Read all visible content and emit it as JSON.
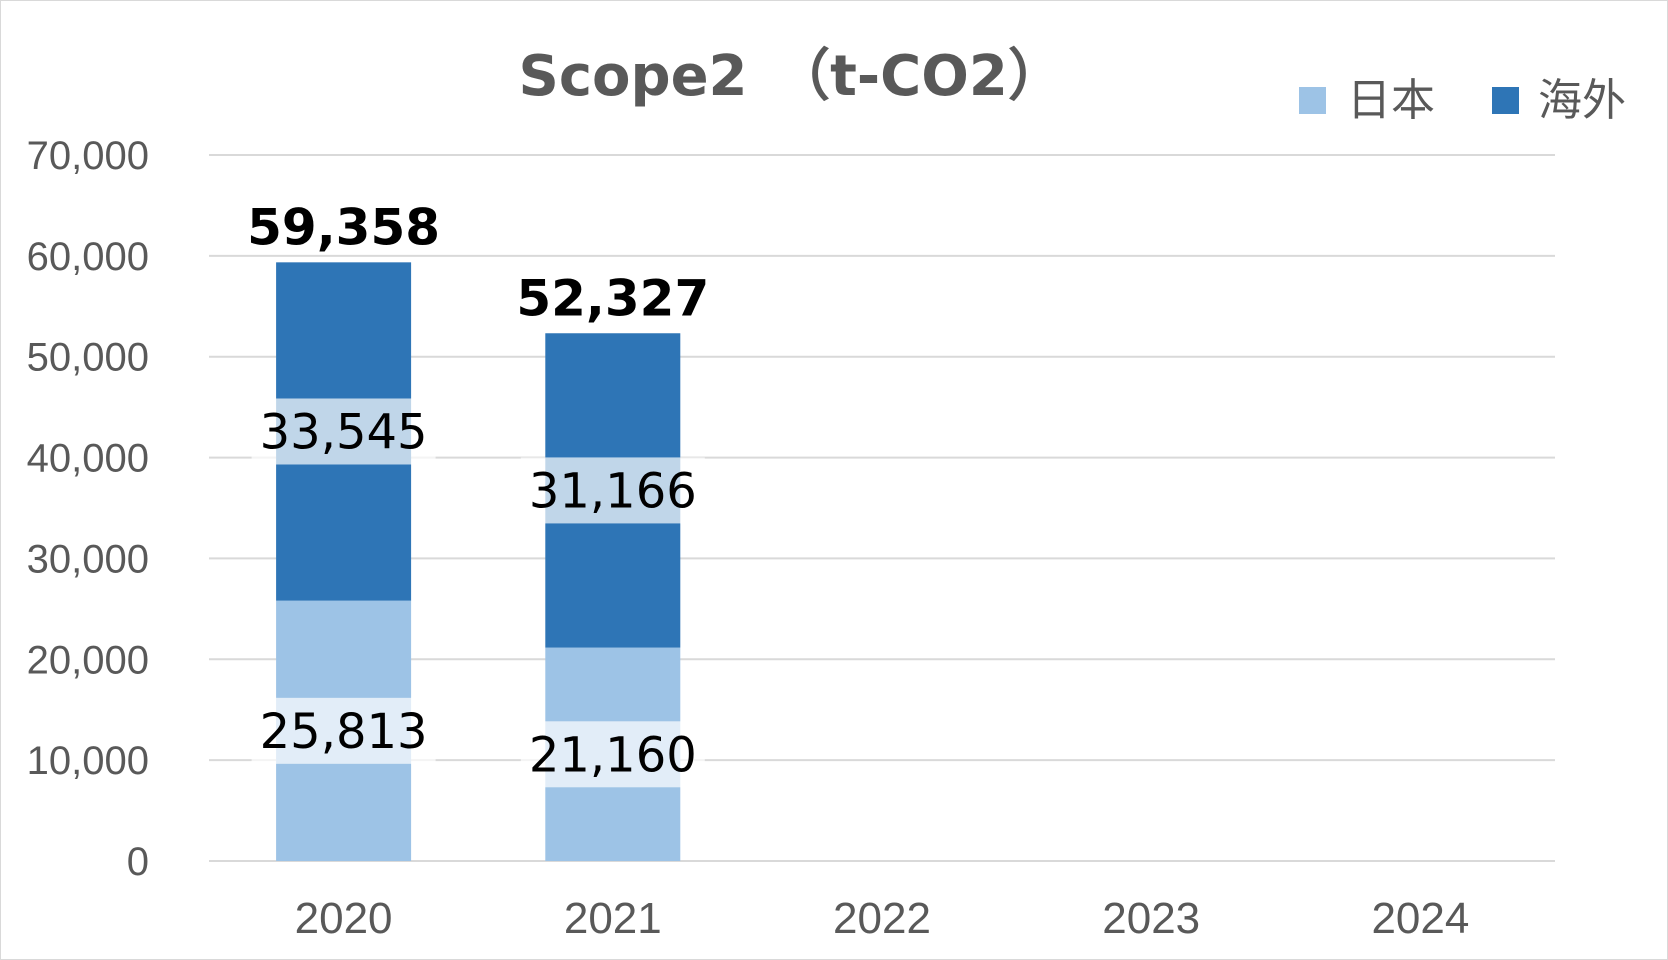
{
  "chart_data": {
    "type": "bar",
    "stacked": true,
    "title": "Scope2",
    "unit": "（t-CO2）",
    "categories": [
      "2020",
      "2021",
      "2022",
      "2023",
      "2024"
    ],
    "series": [
      {
        "name": "日本",
        "color": "#9dc3e6",
        "values": [
          25813,
          21160,
          null,
          null,
          null
        ],
        "labels": [
          "25,813",
          "21,160",
          "",
          "",
          ""
        ]
      },
      {
        "name": "海外",
        "color": "#2e75b6",
        "values": [
          33545,
          31166,
          null,
          null,
          null
        ],
        "labels": [
          "33,545",
          "31,166",
          "",
          "",
          ""
        ]
      }
    ],
    "totals": [
      "59,358",
      "52,327",
      "",
      "",
      ""
    ],
    "ylim": [
      0,
      70000
    ],
    "yticks": [
      "0",
      "10,000",
      "20,000",
      "30,000",
      "40,000",
      "50,000",
      "60,000",
      "70,000"
    ],
    "grid": true,
    "legend_position": "top-right"
  }
}
